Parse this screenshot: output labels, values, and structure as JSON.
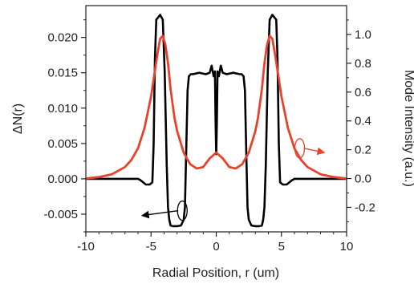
{
  "chart_data": {
    "type": "line",
    "xlabel": "Radial Position, r (um)",
    "ylabel_left": "ΔN(r)",
    "ylabel_right": "Mode Intensity (a.u.)",
    "xlim": [
      -10,
      10
    ],
    "ylim_left": [
      -0.0075,
      0.0245
    ],
    "ylim_right": [
      -0.37,
      1.2
    ],
    "x_ticks": [
      -10,
      -5,
      0,
      5,
      10
    ],
    "x_tick_labels": [
      "-10",
      "-5",
      "0",
      "5",
      "10"
    ],
    "y_left_ticks": [
      -0.005,
      0,
      0.005,
      0.01,
      0.015,
      0.02
    ],
    "y_left_tick_labels": [
      "-0.005",
      "0.000",
      "0.005",
      "0.010",
      "0.015",
      "0.020"
    ],
    "y_right_ticks": [
      -0.2,
      0,
      0.2,
      0.4,
      0.6,
      0.8,
      1.0
    ],
    "y_right_tick_labels": [
      "-0.2",
      "0.0",
      "0.2",
      "0.4",
      "0.6",
      "0.8",
      "1.0"
    ],
    "grid": false,
    "series": [
      {
        "axis": "left",
        "color": "#000000",
        "x": [
          -10,
          -6.0,
          -5.8,
          -5.4,
          -5.1,
          -4.9,
          -4.8,
          -4.7,
          -4.6,
          -4.3,
          -4.1,
          -3.95,
          -3.8,
          -3.7,
          -3.6,
          -3.5,
          -3.3,
          -3.0,
          -2.7,
          -2.5,
          -2.4,
          -2.3,
          -2.2,
          -2.1,
          -1.95,
          -1.8,
          -1.3,
          -0.8,
          -0.5,
          -0.35,
          -0.3,
          -0.2,
          -0.1,
          -0.05,
          0.0,
          0.05,
          0.1,
          0.2,
          0.3,
          0.35,
          0.5,
          0.8,
          1.3,
          1.8,
          1.95,
          2.1,
          2.2,
          2.3,
          2.4,
          2.5,
          2.7,
          3.0,
          3.3,
          3.5,
          3.6,
          3.7,
          3.8,
          3.95,
          4.1,
          4.3,
          4.6,
          4.7,
          4.8,
          4.9,
          5.1,
          5.4,
          5.8,
          6.0,
          10
        ],
        "y": [
          0.0,
          0.0,
          -0.0002,
          -0.0008,
          -0.0008,
          -0.0005,
          0.005,
          0.017,
          0.0225,
          0.0232,
          0.0225,
          0.015,
          0.002,
          -0.004,
          -0.0058,
          -0.0066,
          -0.0067,
          -0.0067,
          -0.0066,
          -0.0058,
          -0.004,
          0.004,
          0.0125,
          0.0145,
          0.0148,
          0.0148,
          0.015,
          0.0148,
          0.015,
          0.016,
          0.0155,
          0.0145,
          0.0152,
          0.008,
          0.0035,
          0.008,
          0.0152,
          0.0145,
          0.0155,
          0.016,
          0.015,
          0.0148,
          0.015,
          0.0148,
          0.0148,
          0.0145,
          0.0125,
          0.004,
          -0.004,
          -0.0058,
          -0.0066,
          -0.0067,
          -0.0067,
          -0.0066,
          -0.0058,
          -0.004,
          0.002,
          0.015,
          0.0225,
          0.0232,
          0.0225,
          0.017,
          0.005,
          -0.0005,
          -0.0008,
          -0.0008,
          -0.0002,
          0.0,
          0.0
        ]
      },
      {
        "axis": "right",
        "color": "#e8432a",
        "x": [
          -10,
          -9,
          -8,
          -7,
          -6.5,
          -6,
          -5.5,
          -5,
          -4.7,
          -4.5,
          -4.3,
          -4.1,
          -3.9,
          -3.7,
          -3.5,
          -3.2,
          -3,
          -2.5,
          -2,
          -1.5,
          -1,
          -0.5,
          0,
          0.5,
          1,
          1.5,
          2,
          2.5,
          3,
          3.2,
          3.5,
          3.7,
          3.9,
          4.1,
          4.3,
          4.5,
          4.7,
          5,
          5.5,
          6,
          6.5,
          7,
          8,
          9,
          10
        ],
        "y": [
          0.0,
          0.01,
          0.03,
          0.08,
          0.13,
          0.21,
          0.35,
          0.57,
          0.75,
          0.87,
          0.97,
          0.99,
          0.93,
          0.8,
          0.62,
          0.42,
          0.33,
          0.18,
          0.1,
          0.07,
          0.08,
          0.14,
          0.18,
          0.14,
          0.08,
          0.07,
          0.1,
          0.18,
          0.33,
          0.42,
          0.62,
          0.8,
          0.93,
          0.99,
          0.97,
          0.87,
          0.75,
          0.57,
          0.35,
          0.21,
          0.13,
          0.08,
          0.03,
          0.01,
          0.0
        ]
      }
    ],
    "annotations": [
      {
        "type": "ellipse-arrow",
        "color": "#000000",
        "target_axis": "left",
        "ellipse": {
          "x": -2.6,
          "y": -0.0045
        },
        "arrow_to": {
          "x": -5.7,
          "y": -0.0052
        }
      },
      {
        "type": "ellipse-arrow",
        "color": "#e8432a",
        "target_axis": "right",
        "ellipse": {
          "x": 6.4,
          "y": 0.21
        },
        "arrow_to": {
          "x": 8.3,
          "y": 0.18
        }
      }
    ]
  }
}
